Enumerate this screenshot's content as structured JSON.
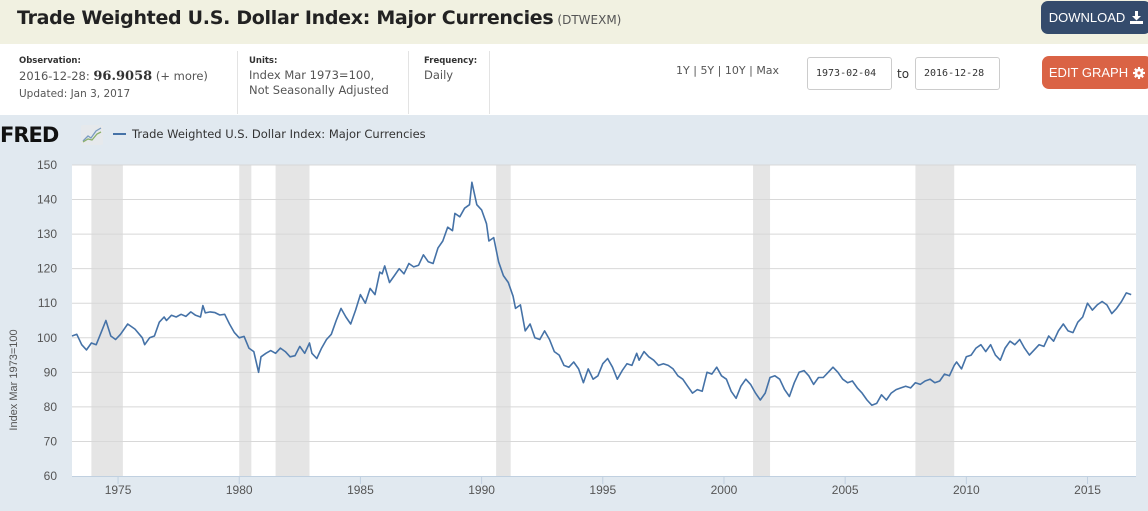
{
  "header": {
    "title": "Trade Weighted U.S. Dollar Index: Major Currencies",
    "series_code": "(DTWEXM)",
    "download_label": "DOWNLOAD",
    "edit_graph_label": "EDIT GRAPH"
  },
  "meta": {
    "observation_label": "Observation:",
    "observation_date": "2016-12-28:",
    "observation_value": "96.9058",
    "observation_more": "(+ more)",
    "updated": "Updated: Jan 3, 2017",
    "units_label": "Units:",
    "units_line1": "Index Mar 1973=100,",
    "units_line2": "Not Seasonally Adjusted",
    "frequency_label": "Frequency:",
    "frequency_value": "Daily"
  },
  "range": {
    "options": [
      "1Y",
      "5Y",
      "10Y",
      "Max"
    ],
    "separator": "|",
    "start": "1973-02-04",
    "to_label": "to",
    "end": "2016-12-28"
  },
  "logo": {
    "text": "FRED"
  },
  "icons": {
    "download": "download-icon",
    "gear": "gear-icon",
    "chart": "line-chart-icon"
  },
  "colors": {
    "line": "#4572a7",
    "recession": "#e5e5e5",
    "download_btn": "#344b6c",
    "edit_btn": "#da6345"
  },
  "chart_data": {
    "type": "line",
    "title": "Trade Weighted U.S. Dollar Index: Major Currencies",
    "xlabel": "",
    "ylabel": "Index Mar 1973=100",
    "xlim": [
      1973.1,
      2017.0
    ],
    "ylim": [
      60,
      150
    ],
    "yticks": [
      60,
      70,
      80,
      90,
      100,
      110,
      120,
      130,
      140,
      150
    ],
    "xticks": [
      1975,
      1980,
      1985,
      1990,
      1995,
      2000,
      2005,
      2010,
      2015
    ],
    "grid": true,
    "legend": "top-left",
    "recessions": [
      [
        1973.9,
        1975.2
      ],
      [
        1980.0,
        1980.5
      ],
      [
        1981.5,
        1982.9
      ],
      [
        1990.6,
        1991.2
      ],
      [
        2001.2,
        2001.9
      ],
      [
        2007.9,
        2009.5
      ]
    ],
    "series": [
      {
        "name": "Trade Weighted U.S. Dollar Index: Major Currencies",
        "points": [
          [
            1973.1,
            100.5
          ],
          [
            1973.3,
            101
          ],
          [
            1973.5,
            98
          ],
          [
            1973.7,
            96.5
          ],
          [
            1973.9,
            98.5
          ],
          [
            1974.1,
            98
          ],
          [
            1974.3,
            101.5
          ],
          [
            1974.5,
            105
          ],
          [
            1974.7,
            100.5
          ],
          [
            1974.9,
            99.5
          ],
          [
            1975.1,
            101
          ],
          [
            1975.4,
            104
          ],
          [
            1975.7,
            102.5
          ],
          [
            1976.0,
            100
          ],
          [
            1976.1,
            98
          ],
          [
            1976.3,
            100
          ],
          [
            1976.5,
            100.5
          ],
          [
            1976.7,
            104.5
          ],
          [
            1976.9,
            106
          ],
          [
            1977.0,
            105
          ],
          [
            1977.2,
            106.5
          ],
          [
            1977.4,
            106
          ],
          [
            1977.6,
            106.8
          ],
          [
            1977.8,
            106.2
          ],
          [
            1978.0,
            107.5
          ],
          [
            1978.2,
            106.5
          ],
          [
            1978.4,
            106
          ],
          [
            1978.5,
            109.3
          ],
          [
            1978.6,
            107.2
          ],
          [
            1978.8,
            107.5
          ],
          [
            1979.0,
            107.3
          ],
          [
            1979.2,
            106.6
          ],
          [
            1979.4,
            106.8
          ],
          [
            1979.6,
            104
          ],
          [
            1979.8,
            101.5
          ],
          [
            1980.0,
            100
          ],
          [
            1980.2,
            100.4
          ],
          [
            1980.4,
            97
          ],
          [
            1980.6,
            96
          ],
          [
            1980.8,
            90
          ],
          [
            1980.9,
            94.5
          ],
          [
            1981.1,
            95.5
          ],
          [
            1981.3,
            96.3
          ],
          [
            1981.5,
            95.5
          ],
          [
            1981.7,
            97
          ],
          [
            1981.9,
            96
          ],
          [
            1982.1,
            94.5
          ],
          [
            1982.3,
            94.8
          ],
          [
            1982.5,
            97.5
          ],
          [
            1982.7,
            95.5
          ],
          [
            1982.9,
            98.5
          ],
          [
            1983.0,
            95.5
          ],
          [
            1983.2,
            94
          ],
          [
            1983.4,
            97
          ],
          [
            1983.6,
            99.5
          ],
          [
            1983.8,
            101
          ],
          [
            1984.0,
            105
          ],
          [
            1984.2,
            108.5
          ],
          [
            1984.4,
            106
          ],
          [
            1984.6,
            104
          ],
          [
            1984.8,
            108
          ],
          [
            1985.0,
            112.5
          ],
          [
            1985.2,
            110
          ],
          [
            1985.4,
            114.3
          ],
          [
            1985.6,
            112.5
          ],
          [
            1985.8,
            119
          ],
          [
            1985.9,
            118.5
          ],
          [
            1986.0,
            120.8
          ],
          [
            1986.2,
            116
          ],
          [
            1986.4,
            118
          ],
          [
            1986.6,
            120
          ],
          [
            1986.8,
            118.5
          ],
          [
            1987.0,
            121.5
          ],
          [
            1987.2,
            120.5
          ],
          [
            1987.4,
            121
          ],
          [
            1987.6,
            124
          ],
          [
            1987.8,
            122
          ],
          [
            1988.0,
            121.5
          ],
          [
            1988.2,
            126
          ],
          [
            1988.4,
            128
          ],
          [
            1988.6,
            132
          ],
          [
            1988.8,
            131
          ],
          [
            1988.9,
            136
          ],
          [
            1989.1,
            135
          ],
          [
            1989.3,
            137.5
          ],
          [
            1989.5,
            138.5
          ],
          [
            1989.6,
            145
          ],
          [
            1989.8,
            138.5
          ],
          [
            1990.0,
            137
          ],
          [
            1990.2,
            133
          ],
          [
            1990.3,
            128
          ],
          [
            1990.5,
            129
          ],
          [
            1990.7,
            122
          ],
          [
            1990.9,
            118
          ],
          [
            1991.1,
            116
          ],
          [
            1991.3,
            112
          ],
          [
            1991.4,
            108.5
          ],
          [
            1991.6,
            109.5
          ],
          [
            1991.8,
            102
          ],
          [
            1992.0,
            104
          ],
          [
            1992.2,
            100
          ],
          [
            1992.4,
            99.5
          ],
          [
            1992.6,
            102
          ],
          [
            1992.8,
            99.5
          ],
          [
            1993.0,
            96
          ],
          [
            1993.2,
            95
          ],
          [
            1993.4,
            92
          ],
          [
            1993.6,
            91.5
          ],
          [
            1993.8,
            93
          ],
          [
            1994.0,
            91
          ],
          [
            1994.2,
            87
          ],
          [
            1994.4,
            91
          ],
          [
            1994.6,
            88
          ],
          [
            1994.8,
            89
          ],
          [
            1995.0,
            92.5
          ],
          [
            1995.2,
            94
          ],
          [
            1995.4,
            91.5
          ],
          [
            1995.6,
            88
          ],
          [
            1995.8,
            90.5
          ],
          [
            1996.0,
            92.5
          ],
          [
            1996.2,
            92
          ],
          [
            1996.4,
            95.5
          ],
          [
            1996.5,
            93.5
          ],
          [
            1996.7,
            96
          ],
          [
            1996.9,
            94.5
          ],
          [
            1997.1,
            93.5
          ],
          [
            1997.3,
            92
          ],
          [
            1997.5,
            92.5
          ],
          [
            1997.7,
            92
          ],
          [
            1997.9,
            91
          ],
          [
            1998.1,
            89
          ],
          [
            1998.3,
            88
          ],
          [
            1998.5,
            86
          ],
          [
            1998.7,
            84
          ],
          [
            1998.9,
            85
          ],
          [
            1999.1,
            84.5
          ],
          [
            1999.3,
            90
          ],
          [
            1999.5,
            89.5
          ],
          [
            1999.7,
            91.5
          ],
          [
            1999.9,
            89
          ],
          [
            2000.1,
            88
          ],
          [
            2000.3,
            84.5
          ],
          [
            2000.5,
            82.5
          ],
          [
            2000.7,
            86
          ],
          [
            2000.9,
            88
          ],
          [
            2001.1,
            86.5
          ],
          [
            2001.3,
            84
          ],
          [
            2001.5,
            82
          ],
          [
            2001.7,
            84
          ],
          [
            2001.9,
            88.5
          ],
          [
            2002.1,
            89
          ],
          [
            2002.3,
            88
          ],
          [
            2002.5,
            85
          ],
          [
            2002.7,
            83
          ],
          [
            2002.9,
            87
          ],
          [
            2003.1,
            90
          ],
          [
            2003.3,
            90.5
          ],
          [
            2003.5,
            89
          ],
          [
            2003.7,
            86.5
          ],
          [
            2003.9,
            88.5
          ],
          [
            2004.1,
            88.5
          ],
          [
            2004.3,
            90
          ],
          [
            2004.5,
            91.5
          ],
          [
            2004.7,
            90
          ],
          [
            2004.9,
            88
          ],
          [
            2005.1,
            87
          ],
          [
            2005.3,
            87.5
          ],
          [
            2005.5,
            85.5
          ],
          [
            2005.7,
            84
          ],
          [
            2005.9,
            82
          ],
          [
            2006.1,
            80.5
          ],
          [
            2006.3,
            81
          ],
          [
            2006.5,
            83.5
          ],
          [
            2006.7,
            82
          ],
          [
            2006.9,
            84
          ],
          [
            2007.1,
            85
          ],
          [
            2007.3,
            85.5
          ],
          [
            2007.5,
            86
          ],
          [
            2007.7,
            85.5
          ],
          [
            2007.9,
            87
          ],
          [
            2008.1,
            86.5
          ],
          [
            2008.3,
            87.5
          ],
          [
            2008.5,
            88
          ],
          [
            2008.7,
            87
          ],
          [
            2008.9,
            87.5
          ],
          [
            2009.1,
            89.5
          ],
          [
            2009.3,
            89
          ],
          [
            2009.5,
            92
          ],
          [
            2009.6,
            93
          ],
          [
            2009.8,
            91
          ],
          [
            2010.0,
            94.5
          ],
          [
            2010.2,
            95
          ],
          [
            2010.4,
            97
          ],
          [
            2010.6,
            98
          ],
          [
            2010.8,
            96
          ],
          [
            2011.0,
            98
          ],
          [
            2011.2,
            95
          ],
          [
            2011.4,
            93.5
          ],
          [
            2011.6,
            97
          ],
          [
            2011.8,
            99
          ],
          [
            2012.0,
            98
          ],
          [
            2012.2,
            99.5
          ],
          [
            2012.4,
            97
          ],
          [
            2012.6,
            95
          ],
          [
            2012.8,
            96.5
          ],
          [
            2013.0,
            98
          ],
          [
            2013.2,
            97.5
          ],
          [
            2013.4,
            100.5
          ],
          [
            2013.6,
            99
          ],
          [
            2013.8,
            102
          ],
          [
            2014.0,
            104
          ],
          [
            2014.2,
            102
          ],
          [
            2014.4,
            101.5
          ],
          [
            2014.6,
            104.5
          ],
          [
            2014.8,
            106
          ],
          [
            2015.0,
            110
          ],
          [
            2015.2,
            108
          ],
          [
            2015.4,
            109.5
          ],
          [
            2015.6,
            110.5
          ],
          [
            2015.8,
            109.5
          ],
          [
            2016.0,
            107
          ],
          [
            2016.2,
            108.5
          ],
          [
            2016.4,
            110.5
          ],
          [
            2016.6,
            113
          ],
          [
            2016.8,
            112.5
          ]
        ]
      }
    ]
  }
}
